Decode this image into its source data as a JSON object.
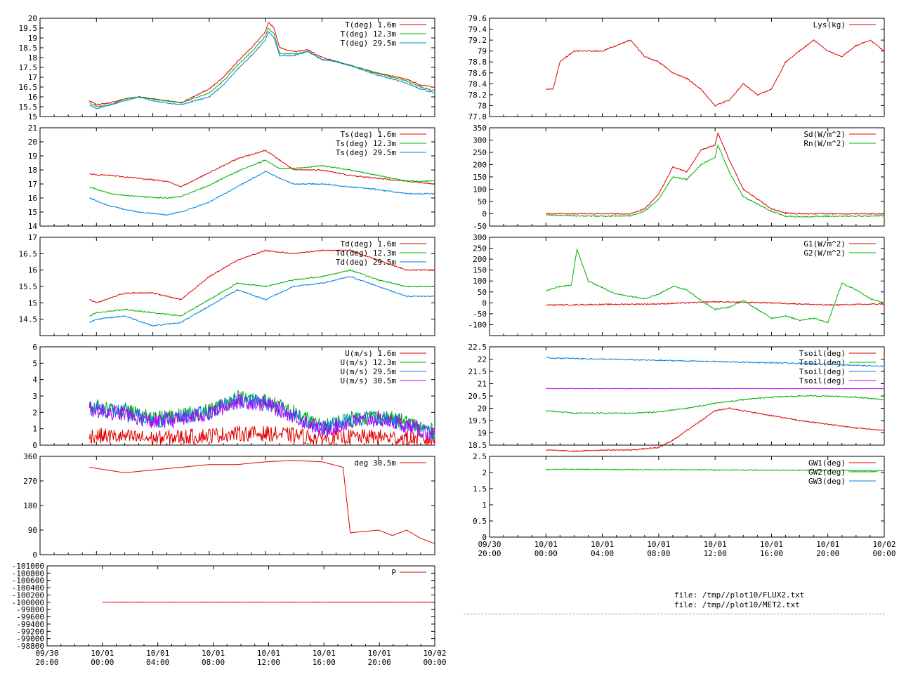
{
  "colors": {
    "red": "#e00000",
    "green": "#00b000",
    "blue": "#0080e0",
    "purple": "#b000ff"
  },
  "x_tick_labels": [
    {
      "top": "09/30",
      "bottom": "20:00"
    },
    {
      "top": "10/01",
      "bottom": "00:00"
    },
    {
      "top": "10/01",
      "bottom": "04:00"
    },
    {
      "top": "10/01",
      "bottom": "08:00"
    },
    {
      "top": "10/01",
      "bottom": "12:00"
    },
    {
      "top": "10/01",
      "bottom": "16:00"
    },
    {
      "top": "10/01",
      "bottom": "20:00"
    },
    {
      "top": "10/02",
      "bottom": "00:00"
    }
  ],
  "footer": {
    "line1": "file: /tmp//plot10/FLUX2.txt",
    "line2": "file: /tmp//plot10/MET2.txt"
  },
  "chart_data": [
    {
      "type": "line",
      "ylim": [
        15,
        20
      ],
      "yticks": [
        "15",
        "15.5",
        "16",
        "16.5",
        "17",
        "17.5",
        "18",
        "18.5",
        "19",
        "19.5",
        "20"
      ],
      "series": [
        {
          "name": "T(deg)  1.6m",
          "color": "red",
          "x": [
            23.5,
            24,
            25,
            26,
            27,
            28,
            30,
            32,
            33,
            34,
            35,
            36,
            36.2,
            36.6,
            37,
            38,
            39,
            40,
            41,
            42,
            44,
            46,
            47,
            48
          ],
          "y": [
            15.8,
            15.6,
            15.7,
            15.9,
            16.0,
            15.9,
            15.7,
            16.4,
            17.0,
            17.8,
            18.5,
            19.3,
            19.8,
            19.5,
            18.5,
            18.3,
            18.4,
            18.0,
            17.8,
            17.6,
            17.2,
            16.9,
            16.6,
            16.5
          ]
        },
        {
          "name": "T(deg) 12.3m",
          "color": "green",
          "x": [
            23.5,
            24,
            25,
            26,
            27,
            28,
            30,
            32,
            33,
            34,
            35,
            36,
            36.2,
            36.6,
            37,
            38,
            39,
            40,
            41,
            42,
            44,
            46,
            47,
            48
          ],
          "y": [
            15.7,
            15.5,
            15.6,
            15.9,
            16.0,
            15.9,
            15.7,
            16.2,
            16.8,
            17.6,
            18.3,
            19.1,
            19.5,
            19.2,
            18.2,
            18.2,
            18.3,
            17.9,
            17.8,
            17.6,
            17.2,
            16.8,
            16.5,
            16.3
          ]
        },
        {
          "name": "T(deg) 29.5m",
          "color": "blue",
          "x": [
            23.5,
            24,
            25,
            26,
            27,
            28,
            30,
            32,
            33,
            34,
            35,
            36,
            36.2,
            36.6,
            37,
            38,
            39,
            40,
            41,
            42,
            44,
            46,
            47,
            48
          ],
          "y": [
            15.6,
            15.4,
            15.6,
            15.8,
            16.0,
            15.8,
            15.6,
            16.0,
            16.6,
            17.4,
            18.1,
            18.9,
            19.3,
            19.0,
            18.1,
            18.1,
            18.3,
            17.9,
            17.8,
            17.6,
            17.1,
            16.7,
            16.4,
            16.2
          ]
        }
      ]
    },
    {
      "type": "line",
      "ylim": [
        14,
        21
      ],
      "yticks": [
        "14",
        "15",
        "16",
        "17",
        "18",
        "19",
        "20",
        "21"
      ],
      "series": [
        {
          "name": "Ts(deg)  1.6m",
          "color": "red",
          "x": [
            23.5,
            25,
            27,
            29,
            30,
            32,
            34,
            36,
            37,
            38,
            40,
            42,
            44,
            46,
            48
          ],
          "y": [
            17.7,
            17.6,
            17.4,
            17.2,
            16.8,
            17.8,
            18.8,
            19.4,
            18.7,
            18.0,
            18.0,
            17.6,
            17.4,
            17.2,
            17.0
          ]
        },
        {
          "name": "Ts(deg) 12.3m",
          "color": "green",
          "x": [
            23.5,
            25,
            27,
            29,
            30,
            32,
            34,
            36,
            37,
            38,
            40,
            42,
            44,
            46,
            48
          ],
          "y": [
            16.8,
            16.3,
            16.1,
            16.0,
            16.1,
            16.9,
            17.9,
            18.7,
            18.1,
            18.1,
            18.3,
            18.0,
            17.6,
            17.2,
            17.2
          ]
        },
        {
          "name": "Ts(deg) 29.5m",
          "color": "blue",
          "x": [
            23.5,
            25,
            27,
            29,
            30,
            32,
            34,
            36,
            37,
            38,
            40,
            42,
            44,
            46,
            48
          ],
          "y": [
            16.0,
            15.4,
            15.0,
            14.8,
            15.0,
            15.7,
            16.8,
            17.9,
            17.4,
            17.0,
            17.0,
            16.8,
            16.6,
            16.3,
            16.3
          ]
        }
      ]
    },
    {
      "type": "line",
      "ylim": [
        14,
        17
      ],
      "yticks": [
        "14.5",
        "15",
        "15.5",
        "16",
        "16.5",
        "17"
      ],
      "series": [
        {
          "name": "Td(deg)  1.6m",
          "color": "red",
          "x": [
            23.5,
            24,
            26,
            28,
            30,
            32,
            34,
            36,
            38,
            40,
            42,
            44,
            46,
            48
          ],
          "y": [
            15.1,
            15.0,
            15.3,
            15.3,
            15.1,
            15.8,
            16.3,
            16.6,
            16.5,
            16.6,
            16.6,
            16.3,
            16.0,
            16.0
          ]
        },
        {
          "name": "Td(deg) 12.3m",
          "color": "green",
          "x": [
            23.5,
            24,
            26,
            28,
            30,
            32,
            34,
            36,
            38,
            40,
            42,
            44,
            46,
            48
          ],
          "y": [
            14.6,
            14.7,
            14.8,
            14.7,
            14.6,
            15.1,
            15.6,
            15.5,
            15.7,
            15.8,
            16.0,
            15.7,
            15.5,
            15.5
          ]
        },
        {
          "name": "Td(deg) 29.5m",
          "color": "blue",
          "x": [
            23.5,
            24,
            26,
            28,
            30,
            32,
            34,
            36,
            38,
            40,
            42,
            44,
            46,
            48
          ],
          "y": [
            14.4,
            14.5,
            14.6,
            14.3,
            14.4,
            14.9,
            15.4,
            15.1,
            15.5,
            15.6,
            15.8,
            15.5,
            15.2,
            15.2
          ]
        }
      ]
    },
    {
      "type": "line",
      "ylim": [
        0,
        6
      ],
      "yticks": [
        "0",
        "1",
        "2",
        "3",
        "4",
        "5",
        "6"
      ],
      "series": [
        {
          "name": "U(m/s)  1.6m",
          "color": "red",
          "x": [
            23.5,
            26,
            28,
            30,
            32,
            34,
            36,
            38,
            40,
            42,
            44,
            46,
            48
          ],
          "y": [
            0.6,
            0.5,
            0.4,
            0.5,
            0.6,
            0.7,
            0.7,
            0.6,
            0.4,
            0.5,
            0.5,
            0.4,
            0.3
          ]
        },
        {
          "name": "U(m/s) 12.3m",
          "color": "green",
          "x": [
            23.5,
            26,
            28,
            30,
            32,
            34,
            36,
            38,
            40,
            42,
            44,
            46,
            48
          ],
          "y": [
            2.4,
            2.1,
            1.6,
            1.8,
            2.1,
            2.9,
            2.7,
            2.0,
            1.1,
            1.6,
            1.8,
            1.4,
            0.8
          ]
        },
        {
          "name": "U(m/s) 29.5m",
          "color": "blue",
          "x": [
            23.5,
            26,
            28,
            30,
            32,
            34,
            36,
            38,
            40,
            42,
            44,
            46,
            48
          ],
          "y": [
            2.3,
            2.0,
            1.5,
            1.7,
            2.0,
            2.8,
            2.6,
            1.9,
            1.0,
            1.5,
            1.7,
            1.3,
            0.7
          ]
        },
        {
          "name": "U(m/s) 30.5m",
          "color": "purple",
          "x": [
            23.5,
            26,
            28,
            30,
            32,
            34,
            36,
            38,
            40,
            42,
            44,
            46,
            48
          ],
          "y": [
            2.2,
            1.9,
            1.4,
            1.6,
            1.9,
            2.7,
            2.5,
            1.8,
            0.9,
            1.4,
            1.6,
            1.2,
            0.6
          ]
        }
      ]
    },
    {
      "type": "line",
      "ylim": [
        0,
        360
      ],
      "yticks": [
        "0",
        "90",
        "180",
        "270",
        "360"
      ],
      "series": [
        {
          "name": "deg  30.5m",
          "color": "red",
          "x": [
            23.5,
            26,
            28,
            30,
            32,
            34,
            36,
            38,
            40,
            41.5,
            42,
            44,
            45,
            46,
            47,
            48
          ],
          "y": [
            320,
            300,
            310,
            320,
            330,
            330,
            340,
            345,
            340,
            320,
            80,
            90,
            70,
            90,
            60,
            40
          ]
        }
      ]
    },
    {
      "type": "line",
      "ylim": [
        -98800,
        -101000
      ],
      "yticks": [
        "-101000",
        "-100800",
        "-100600",
        "-100400",
        "-100200",
        "-100000",
        "-99800",
        "-99600",
        "-99400",
        "-99200",
        "-99000",
        "-98800"
      ],
      "series": [
        {
          "name": "P",
          "color": "red",
          "x": [
            24,
            48
          ],
          "y": [
            -100000,
            -100000
          ]
        }
      ]
    },
    {
      "type": "line",
      "ylim": [
        77.8,
        79.6
      ],
      "yticks": [
        "77.8",
        "78",
        "78.2",
        "78.4",
        "78.6",
        "78.8",
        "79",
        "79.2",
        "79.4",
        "79.6"
      ],
      "series": [
        {
          "name": "Lys(kg)",
          "color": "red",
          "x": [
            24,
            24.5,
            25,
            26,
            28,
            30,
            31,
            32,
            33,
            34,
            35,
            36,
            37,
            38,
            39,
            40,
            41,
            42,
            43,
            44,
            45,
            46,
            47,
            48
          ],
          "y": [
            78.3,
            78.3,
            78.8,
            79.0,
            79.0,
            79.2,
            78.9,
            78.8,
            78.6,
            78.5,
            78.3,
            78.0,
            78.1,
            78.4,
            78.2,
            78.3,
            78.8,
            79.0,
            79.2,
            79.0,
            78.9,
            79.1,
            79.2,
            79.0
          ]
        }
      ]
    },
    {
      "type": "line",
      "ylim": [
        -50,
        350
      ],
      "yticks": [
        "-50",
        "0",
        "50",
        "100",
        "150",
        "200",
        "250",
        "300",
        "350"
      ],
      "series": [
        {
          "name": "Sd(W/m^2)",
          "color": "red",
          "x": [
            24,
            30,
            31,
            32,
            33,
            34,
            35,
            36,
            36.2,
            37,
            38,
            39,
            40,
            41,
            42,
            44,
            46,
            48
          ],
          "y": [
            0,
            0,
            20,
            80,
            190,
            170,
            260,
            280,
            330,
            220,
            100,
            60,
            20,
            3,
            0,
            0,
            0,
            0
          ]
        },
        {
          "name": "Rn(W/m^2)",
          "color": "green",
          "x": [
            24,
            26,
            28,
            30,
            31,
            32,
            33,
            34,
            35,
            36,
            36.2,
            37,
            38,
            39,
            40,
            41,
            42,
            44,
            46,
            48
          ],
          "y": [
            -5,
            -8,
            -10,
            -8,
            10,
            60,
            150,
            140,
            200,
            230,
            280,
            170,
            70,
            40,
            10,
            -10,
            -12,
            -10,
            -10,
            -8
          ]
        }
      ]
    },
    {
      "type": "line",
      "ylim": [
        -150,
        300
      ],
      "yticks": [
        "-100",
        "-50",
        "0",
        "50",
        "100",
        "150",
        "200",
        "250",
        "300"
      ],
      "series": [
        {
          "name": "G1(W/m^2)",
          "color": "red",
          "x": [
            24,
            32,
            36,
            40,
            44,
            48
          ],
          "y": [
            -10,
            -5,
            5,
            0,
            -10,
            -5
          ]
        },
        {
          "name": "G2(W/m^2)",
          "color": "green",
          "x": [
            24,
            25,
            25.8,
            26.2,
            27,
            29,
            30,
            31,
            32,
            33,
            34,
            35,
            36,
            37,
            38,
            39,
            40,
            41,
            42,
            43,
            44,
            45,
            46,
            47,
            48
          ],
          "y": [
            55,
            75,
            80,
            245,
            100,
            40,
            30,
            20,
            40,
            75,
            60,
            10,
            -30,
            -20,
            10,
            -30,
            -70,
            -60,
            -80,
            -70,
            -90,
            90,
            60,
            20,
            0
          ]
        }
      ]
    },
    {
      "type": "line",
      "ylim": [
        18.5,
        22.5
      ],
      "yticks": [
        "18.5",
        "19",
        "19.5",
        "20",
        "20.5",
        "21",
        "21.5",
        "22",
        "22.5"
      ],
      "series": [
        {
          "name": "Tsoil(deg)",
          "color": "red",
          "x": [
            24,
            26,
            28,
            30,
            31,
            32,
            33,
            34,
            35,
            36,
            37,
            38,
            40,
            42,
            44,
            46,
            48
          ],
          "y": [
            18.3,
            18.25,
            18.3,
            18.3,
            18.35,
            18.4,
            18.7,
            19.1,
            19.5,
            19.9,
            20.0,
            19.9,
            19.7,
            19.5,
            19.35,
            19.2,
            19.1
          ]
        },
        {
          "name": "Tsoil(deg)",
          "color": "green",
          "x": [
            24,
            26,
            28,
            30,
            32,
            34,
            36,
            38,
            40,
            42,
            44,
            46,
            48
          ],
          "y": [
            19.9,
            19.8,
            19.8,
            19.8,
            19.85,
            20.0,
            20.2,
            20.35,
            20.45,
            20.5,
            20.5,
            20.45,
            20.35
          ]
        },
        {
          "name": "Tsoil(deg)",
          "color": "blue",
          "x": [
            24,
            28,
            32,
            36,
            40,
            44,
            48
          ],
          "y": [
            22.05,
            22.0,
            21.95,
            21.9,
            21.85,
            21.8,
            21.7
          ]
        },
        {
          "name": "Tsoil(deg)",
          "color": "purple",
          "x": [
            24,
            48
          ],
          "y": [
            20.8,
            20.8
          ]
        }
      ]
    },
    {
      "type": "line",
      "ylim": [
        0,
        2.5
      ],
      "yticks": [
        "0",
        "0.5",
        "1",
        "1.5",
        "2",
        "2.5"
      ],
      "series": [
        {
          "name": "GW1(deg)",
          "color": "red",
          "x": [],
          "y": []
        },
        {
          "name": "GW2(deg)",
          "color": "green",
          "x": [
            24,
            30,
            36,
            42,
            48
          ],
          "y": [
            2.1,
            2.09,
            2.08,
            2.07,
            2.05
          ]
        },
        {
          "name": "GW3(deg)",
          "color": "blue",
          "x": [],
          "y": []
        }
      ]
    }
  ]
}
